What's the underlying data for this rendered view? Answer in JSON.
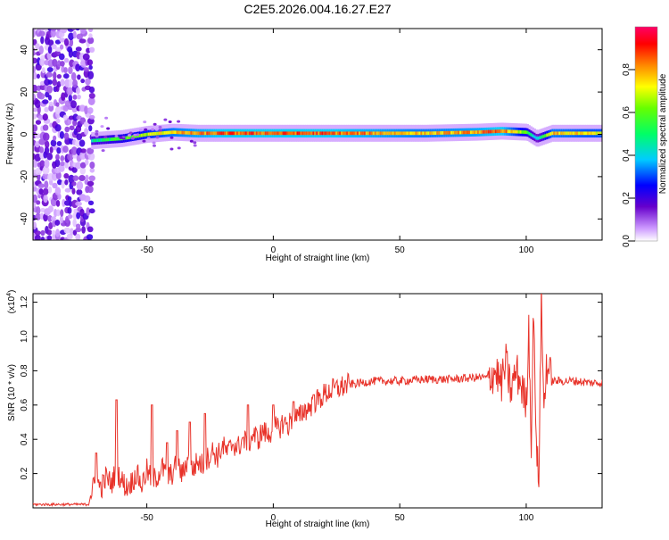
{
  "title": "C2E5.2026.004.16.27.E27",
  "chart_data": [
    {
      "type": "heatmap",
      "xlabel": "Height of straight line (km)",
      "ylabel": "Frequency (Hz)",
      "xlim": [
        -95,
        130
      ],
      "ylim": [
        -50,
        50
      ],
      "xticks": [
        -50,
        0,
        50,
        100
      ],
      "yticks": [
        -40,
        -20,
        0,
        20,
        40
      ],
      "grid": false,
      "colorbar": {
        "label": "Normalized spectral amplitude",
        "range": [
          0,
          1
        ],
        "ticks": [
          "0.0",
          "0.2",
          "0.4",
          "0.6",
          "0.8"
        ],
        "colors": [
          "#ffffff",
          "#cc99ff",
          "#6600cc",
          "#0000ff",
          "#00ccff",
          "#00ff66",
          "#66ff00",
          "#ffff00",
          "#ff8800",
          "#ff0000",
          "#ff0066"
        ]
      },
      "noise_region_x": [
        -95,
        -72
      ],
      "ridge": {
        "x": [
          -72,
          -60,
          -50,
          -40,
          -30,
          -20,
          0,
          20,
          40,
          60,
          80,
          90,
          100,
          104,
          110,
          130
        ],
        "y": [
          -3,
          -2,
          0,
          1,
          0.5,
          0.5,
          0.5,
          0.5,
          0.5,
          0.5,
          1,
          1.5,
          1,
          -2,
          0.5,
          0.5
        ],
        "amplitude": [
          0.5,
          0.6,
          0.7,
          0.8,
          0.85,
          0.9,
          0.9,
          0.9,
          0.85,
          0.8,
          0.85,
          0.9,
          0.6,
          0.4,
          0.8,
          0.75
        ]
      }
    },
    {
      "type": "line",
      "xlabel": "Height of straight line (km)",
      "ylabel": "SNR (10 * v/v)",
      "scale_label": "(x10",
      "scale_exp": "4",
      "xlim": [
        -95,
        130
      ],
      "ylim": [
        0,
        1.25
      ],
      "xticks": [
        -50,
        0,
        50,
        100
      ],
      "yticks": [
        "0.2",
        "0.4",
        "0.6",
        "0.8",
        "1.0",
        "1.2"
      ],
      "grid": false,
      "series": [
        {
          "color": "#e8332a",
          "x": [
            -95,
            -73,
            -72,
            -70,
            -68,
            -66,
            -64,
            -62,
            -60,
            -58,
            -56,
            -54,
            -52,
            -50,
            -48,
            -46,
            -44,
            -42,
            -40,
            -38,
            -36,
            -34,
            -32,
            -30,
            -28,
            -26,
            -24,
            -22,
            -20,
            -18,
            -16,
            -14,
            -12,
            -10,
            -8,
            -6,
            -4,
            -2,
            0,
            2,
            4,
            6,
            8,
            10,
            12,
            14,
            16,
            18,
            20,
            22,
            24,
            26,
            28,
            30,
            35,
            40,
            50,
            60,
            70,
            80,
            85,
            88,
            90,
            92,
            94,
            96,
            98,
            100,
            101,
            102,
            103,
            104,
            105,
            106,
            107,
            108,
            110,
            115,
            120,
            125,
            130
          ],
          "y": [
            0.02,
            0.02,
            0.09,
            0.15,
            0.12,
            0.18,
            0.14,
            0.22,
            0.16,
            0.12,
            0.15,
            0.2,
            0.13,
            0.22,
            0.16,
            0.18,
            0.24,
            0.17,
            0.2,
            0.26,
            0.19,
            0.28,
            0.22,
            0.27,
            0.25,
            0.29,
            0.33,
            0.3,
            0.36,
            0.32,
            0.38,
            0.35,
            0.4,
            0.37,
            0.43,
            0.4,
            0.45,
            0.42,
            0.47,
            0.46,
            0.5,
            0.48,
            0.54,
            0.52,
            0.57,
            0.58,
            0.62,
            0.63,
            0.66,
            0.68,
            0.69,
            0.7,
            0.71,
            0.72,
            0.73,
            0.74,
            0.74,
            0.75,
            0.75,
            0.76,
            0.76,
            0.8,
            0.72,
            0.84,
            0.68,
            0.8,
            0.72,
            0.6,
            1.05,
            0.4,
            1.2,
            0.3,
            0.2,
            1.22,
            0.55,
            0.85,
            0.74,
            0.74,
            0.74,
            0.73,
            0.73
          ],
          "spikes": [
            {
              "x": -70,
              "y": 0.32
            },
            {
              "x": -62,
              "y": 0.63
            },
            {
              "x": -48,
              "y": 0.6
            },
            {
              "x": -42,
              "y": 0.38
            },
            {
              "x": -38,
              "y": 0.45
            },
            {
              "x": -33,
              "y": 0.5
            },
            {
              "x": -27,
              "y": 0.55
            },
            {
              "x": -10,
              "y": 0.6
            },
            {
              "x": 0,
              "y": 0.6
            },
            {
              "x": 8,
              "y": 0.62
            },
            {
              "x": 16,
              "y": 0.66
            }
          ]
        }
      ]
    }
  ]
}
